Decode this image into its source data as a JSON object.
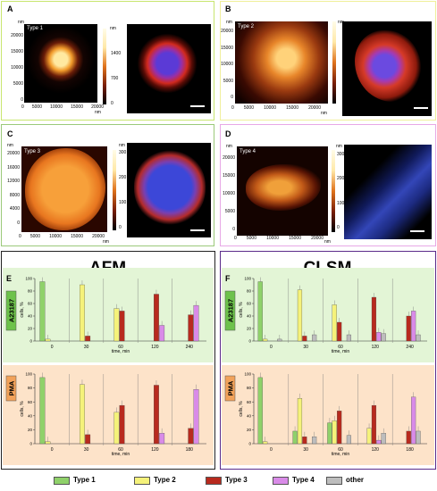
{
  "panels": {
    "A": {
      "letter": "A",
      "type_label": "Type 1",
      "afm_y_ticks": [
        "20000",
        "15000",
        "10000",
        "5000",
        "0"
      ],
      "afm_x_ticks": [
        "0",
        "5000",
        "10000",
        "15000",
        "20000"
      ],
      "colorbar_ticks": [
        "1400",
        "700",
        "0"
      ],
      "unit": "nm"
    },
    "B": {
      "letter": "B",
      "type_label": "Type 2",
      "afm_y_ticks": [
        "20000",
        "15000",
        "10000",
        "5000",
        "0"
      ],
      "afm_x_ticks": [
        "0",
        "5000",
        "10000",
        "15000",
        "20000"
      ],
      "unit": "nm"
    },
    "C": {
      "letter": "C",
      "type_label": "Type 3",
      "afm_y_ticks": [
        "20000",
        "16000",
        "12000",
        "8000",
        "4000",
        "0"
      ],
      "afm_x_ticks": [
        "0",
        "5000",
        "10000",
        "15000",
        "20000"
      ],
      "colorbar_ticks": [
        "300",
        "200",
        "100",
        "0"
      ],
      "unit": "nm"
    },
    "D": {
      "letter": "D",
      "type_label": "Type 4",
      "afm_y_ticks": [
        "20000",
        "15000",
        "10000",
        "5000",
        "0"
      ],
      "afm_x_ticks": [
        "0",
        "5000",
        "10000",
        "15000",
        "20000"
      ],
      "colorbar_ticks": [
        "300",
        "200",
        "100",
        "0"
      ],
      "unit": "nm"
    }
  },
  "titles": {
    "afm": "AFM",
    "clsm": "CLSM"
  },
  "letters": {
    "e": "E",
    "f": "F"
  },
  "conditions": {
    "a23187": "A23187",
    "pma": "PMA"
  },
  "axis": {
    "ylabel": "cells, %",
    "xlabel": "time, min",
    "yticks": [
      "100",
      "80",
      "60",
      "40",
      "20",
      "0"
    ]
  },
  "colors": {
    "type1": "#8fd16a",
    "type2": "#f5f27a",
    "type3": "#b82a1e",
    "type4": "#d98be8",
    "other": "#bdbdbd"
  },
  "legend": [
    "Type 1",
    "Type 2",
    "Type 3",
    "Type 4",
    "other"
  ],
  "chart_data": [
    {
      "type": "bar",
      "title": "",
      "condition": "A23187",
      "method": "AFM",
      "ylabel": "cells, %",
      "xlabel": "time, min",
      "ylim": [
        0,
        100
      ],
      "categories": [
        "0",
        "30",
        "60",
        "120",
        "240"
      ],
      "series": [
        {
          "name": "Type 1",
          "values": [
            95,
            0,
            0,
            0,
            0
          ]
        },
        {
          "name": "Type 2",
          "values": [
            3,
            90,
            52,
            0,
            0
          ]
        },
        {
          "name": "Type 3",
          "values": [
            0,
            8,
            48,
            75,
            42
          ]
        },
        {
          "name": "Type 4",
          "values": [
            0,
            0,
            0,
            25,
            57
          ]
        }
      ]
    },
    {
      "type": "bar",
      "title": "",
      "condition": "PMA",
      "method": "AFM",
      "ylabel": "cells, %",
      "xlabel": "time, min",
      "ylim": [
        0,
        100
      ],
      "categories": [
        "0",
        "30",
        "60",
        "120",
        "180"
      ],
      "series": [
        {
          "name": "Type 1",
          "values": [
            95,
            0,
            0,
            0,
            0
          ]
        },
        {
          "name": "Type 2",
          "values": [
            3,
            85,
            45,
            0,
            0
          ]
        },
        {
          "name": "Type 3",
          "values": [
            0,
            13,
            55,
            84,
            22
          ]
        },
        {
          "name": "Type 4",
          "values": [
            0,
            0,
            0,
            15,
            78
          ]
        }
      ]
    },
    {
      "type": "bar",
      "title": "",
      "condition": "A23187",
      "method": "CLSM",
      "ylabel": "cells, %",
      "xlabel": "time, min",
      "ylim": [
        0,
        100
      ],
      "categories": [
        "0",
        "30",
        "60",
        "120",
        "240"
      ],
      "series": [
        {
          "name": "Type 1",
          "values": [
            95,
            0,
            0,
            0,
            0
          ]
        },
        {
          "name": "Type 2",
          "values": [
            3,
            82,
            58,
            0,
            0
          ]
        },
        {
          "name": "Type 3",
          "values": [
            0,
            8,
            30,
            70,
            40
          ]
        },
        {
          "name": "Type 4",
          "values": [
            0,
            0,
            0,
            14,
            48
          ]
        },
        {
          "name": "other",
          "values": [
            3,
            10,
            10,
            12,
            10
          ]
        }
      ]
    },
    {
      "type": "bar",
      "title": "",
      "condition": "PMA",
      "method": "CLSM",
      "ylabel": "cells, %",
      "xlabel": "time, min",
      "ylim": [
        0,
        100
      ],
      "categories": [
        "0",
        "30",
        "60",
        "120",
        "180"
      ],
      "series": [
        {
          "name": "Type 1",
          "values": [
            95,
            18,
            30,
            0,
            0
          ]
        },
        {
          "name": "Type 2",
          "values": [
            3,
            65,
            33,
            22,
            0
          ]
        },
        {
          "name": "Type 3",
          "values": [
            0,
            10,
            47,
            55,
            18
          ]
        },
        {
          "name": "Type 4",
          "values": [
            0,
            0,
            0,
            5,
            67
          ]
        },
        {
          "name": "other",
          "values": [
            0,
            10,
            12,
            15,
            18
          ]
        }
      ]
    }
  ]
}
